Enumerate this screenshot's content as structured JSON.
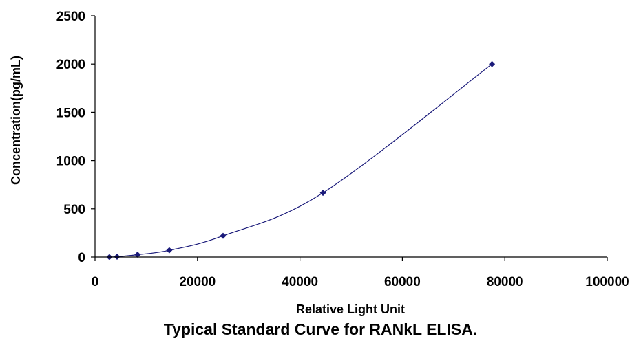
{
  "chart_data": {
    "type": "scatter",
    "title": "",
    "xlabel": "Relative Light Unit",
    "ylabel": "Concentration(pg/mL)",
    "xlim": [
      0,
      100000
    ],
    "ylim": [
      0,
      2500
    ],
    "x_ticks": [
      "0",
      "20000",
      "40000",
      "60000",
      "80000",
      "100000"
    ],
    "y_ticks": [
      "0",
      "500",
      "1000",
      "1500",
      "2000",
      "2500"
    ],
    "grid": false,
    "legend": "none",
    "series": [
      {
        "marker": "diamond",
        "trendline": "smooth",
        "points": [
          {
            "x": 2800,
            "y": 0
          },
          {
            "x": 4300,
            "y": 4
          },
          {
            "x": 8300,
            "y": 25
          },
          {
            "x": 14500,
            "y": 70
          },
          {
            "x": 25000,
            "y": 220
          },
          {
            "x": 44500,
            "y": 665
          },
          {
            "x": 77500,
            "y": 2000
          }
        ]
      }
    ],
    "colors": {
      "marker": "#1a1a7a",
      "line": "#1a1a7a",
      "axis": "#000000"
    }
  },
  "caption": "Typical Standard Curve for RANkL ELISA."
}
